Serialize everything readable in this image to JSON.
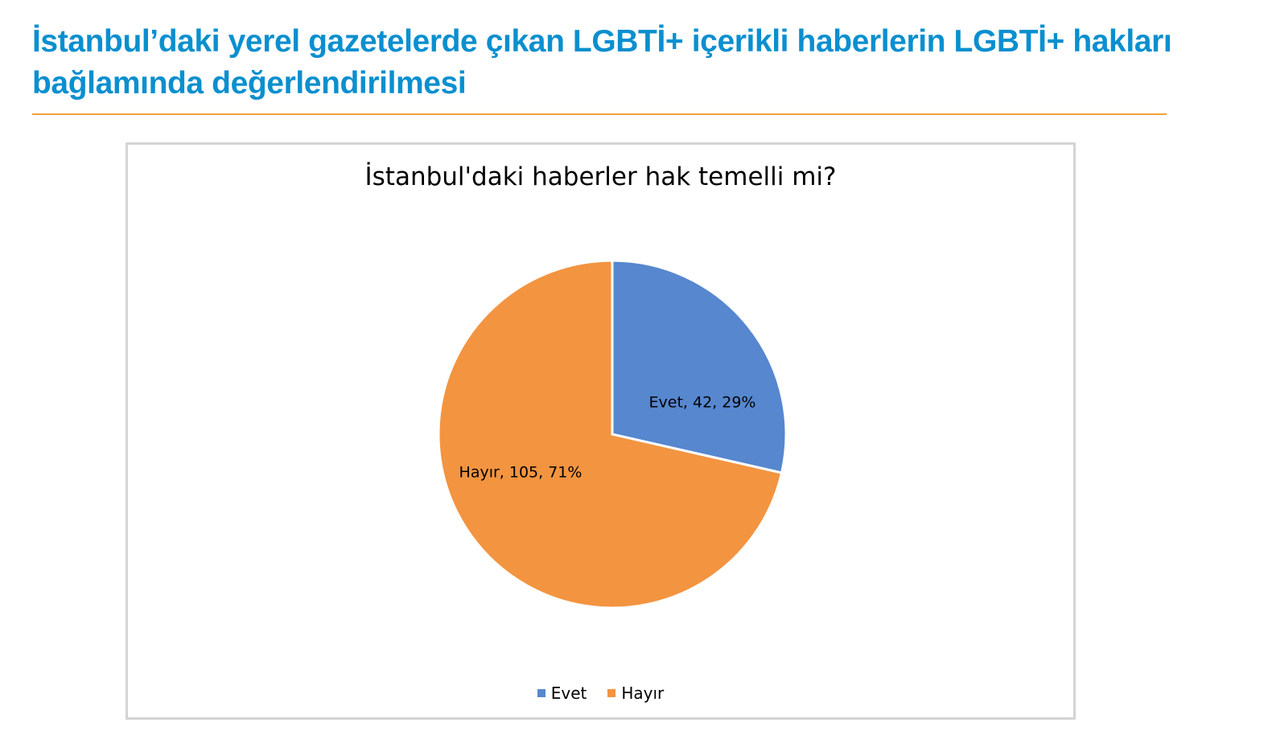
{
  "heading": {
    "text": "İstanbul’daki yerel gazetelerde çıkan LGBTİ+ içerikli haberlerin LGBTİ+ hakları bağlamında değerlendirilmesi",
    "color": "#0a8fcf",
    "rule_color": "#f0a33a"
  },
  "chart_data": {
    "type": "pie",
    "title": "İstanbul'daki haberler hak temelli mi?",
    "categories": [
      "Evet",
      "Hayır"
    ],
    "values": [
      42,
      105
    ],
    "percentages": [
      29,
      71
    ],
    "colors": [
      "#5687cf",
      "#f39440"
    ],
    "data_labels": [
      "Evet, 42, 29%",
      "Hayır, 105, 71%"
    ],
    "legend": {
      "position": "bottom",
      "entries": [
        "Evet",
        "Hayır"
      ]
    },
    "start_angle": "12 o'clock",
    "direction": "clockwise"
  }
}
